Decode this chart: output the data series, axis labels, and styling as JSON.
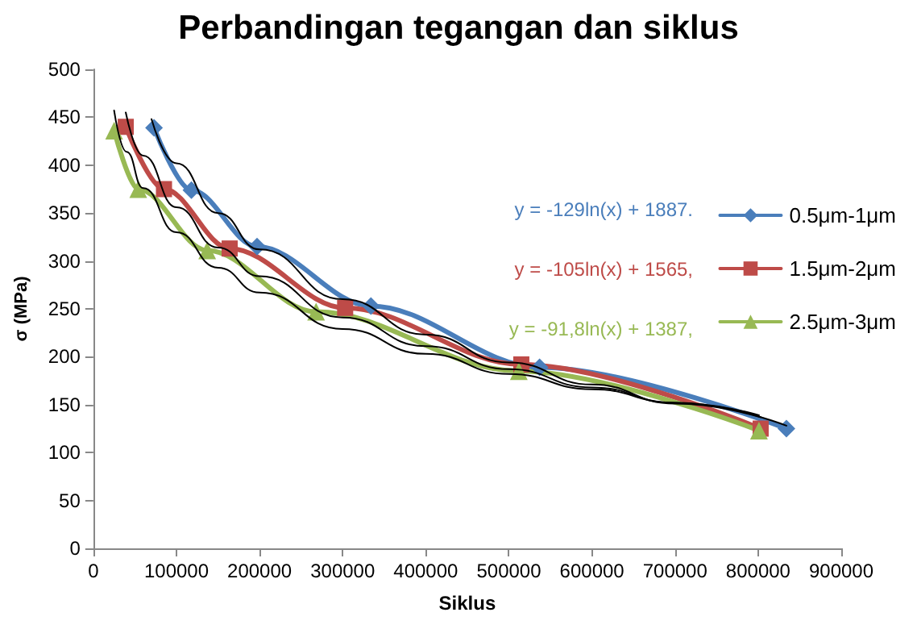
{
  "chart_data": {
    "type": "line",
    "title": "Perbandingan tegangan dan siklus",
    "xlabel": "Siklus",
    "ylabel": "σ (MPa)",
    "xlim": [
      0,
      900000
    ],
    "xticks": [
      0,
      100000,
      200000,
      300000,
      400000,
      500000,
      600000,
      700000,
      800000,
      900000
    ],
    "ylim": [
      0,
      500
    ],
    "yticks": [
      0,
      50,
      100,
      150,
      200,
      250,
      300,
      350,
      400,
      450,
      500
    ],
    "grid": false,
    "legend": "right",
    "annotations": [
      "y = -129ln(x) + 1887.",
      "y = -105ln(x) + 1565,",
      "y = -91,8ln(x) + 1387,"
    ],
    "series": [
      {
        "name": "0.5μm-1μm",
        "color": "#4a7ebb",
        "marker": "diamond",
        "x": [
          73000,
          118000,
          197000,
          334000,
          537000,
          834000
        ],
        "values": [
          439,
          374,
          315,
          253,
          189,
          125
        ]
      },
      {
        "name": "1.5μm-2μm",
        "color": "#be4b48",
        "marker": "square",
        "x": [
          39000,
          85000,
          164000,
          303000,
          515000,
          803000
        ],
        "values": [
          440,
          375,
          313,
          251,
          192,
          125
        ]
      },
      {
        "name": "2.5μm-3μm",
        "color": "#98b954",
        "marker": "triangle",
        "x": [
          25000,
          54000,
          137000,
          268000,
          512000,
          801000
        ],
        "values": [
          436,
          375,
          311,
          247,
          185,
          123
        ]
      },
      {
        "type": "line",
        "color": "#000000",
        "marker": "none",
        "x": [
          70000,
          100000,
          150000,
          200000,
          300000,
          400000,
          500000,
          600000,
          700000,
          834000
        ],
        "values": [
          448,
          402,
          350,
          312,
          260,
          223,
          194,
          171,
          151,
          128
        ]
      },
      {
        "type": "line",
        "color": "#000000",
        "marker": "none",
        "x": [
          39000,
          60000,
          100000,
          150000,
          200000,
          300000,
          400000,
          500000,
          600000,
          700000,
          803000
        ],
        "values": [
          455,
          410,
          356,
          314,
          284,
          241,
          211,
          187,
          168,
          152,
          137
        ]
      },
      {
        "type": "line",
        "color": "#000000",
        "marker": "none",
        "x": [
          25000,
          40000,
          60000,
          100000,
          150000,
          200000,
          300000,
          400000,
          500000,
          600000,
          700000,
          801000
        ],
        "values": [
          457,
          414,
          376,
          330,
          293,
          267,
          229,
          203,
          182,
          166,
          152,
          139
        ]
      }
    ]
  }
}
